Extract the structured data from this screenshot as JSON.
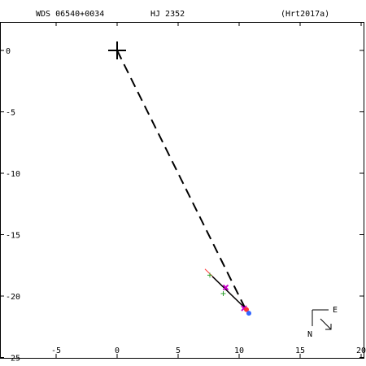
{
  "header": {
    "wds": "WDS 06540+0034",
    "disc": "HJ 2352",
    "ref": "(Hrt2017a)"
  },
  "compass": {
    "east": "E",
    "north": "N"
  },
  "chart_data": {
    "type": "scatter",
    "title": "",
    "xlabel": "",
    "ylabel": "",
    "xlim": [
      -9.5,
      20.5
    ],
    "ylim": [
      -25,
      2.5
    ],
    "xticks": [
      -5,
      0,
      5,
      10,
      15,
      20
    ],
    "yticks": [
      0,
      -5,
      -10,
      -15,
      -20,
      -25
    ],
    "grid": false,
    "primary": [
      0,
      0
    ],
    "orbit_line": [
      [
        7.2,
        -17.8
      ],
      [
        10.5,
        -21.0
      ]
    ],
    "orbit_path": [
      [
        7.8,
        -18.4
      ],
      [
        10.4,
        -20.9
      ],
      [
        10.6,
        -21.2
      ],
      [
        10.8,
        -21.4
      ]
    ],
    "connector": [
      [
        0,
        0
      ],
      [
        10.5,
        -21.0
      ]
    ],
    "observations": [
      {
        "kind": "plus",
        "color": "#2ca02c",
        "x": 7.6,
        "y": -18.3
      },
      {
        "kind": "plus",
        "color": "#2ca02c",
        "x": 8.7,
        "y": -19.8
      },
      {
        "kind": "x",
        "color": "#cc00cc",
        "x": 8.9,
        "y": -19.3
      },
      {
        "kind": "x",
        "color": "#cc00cc",
        "x": 10.4,
        "y": -21.0
      },
      {
        "kind": "dot",
        "color": "#ff3333",
        "x": 10.6,
        "y": -21.1
      },
      {
        "kind": "dot",
        "color": "#3366ff",
        "x": 10.8,
        "y": -21.4
      }
    ]
  }
}
